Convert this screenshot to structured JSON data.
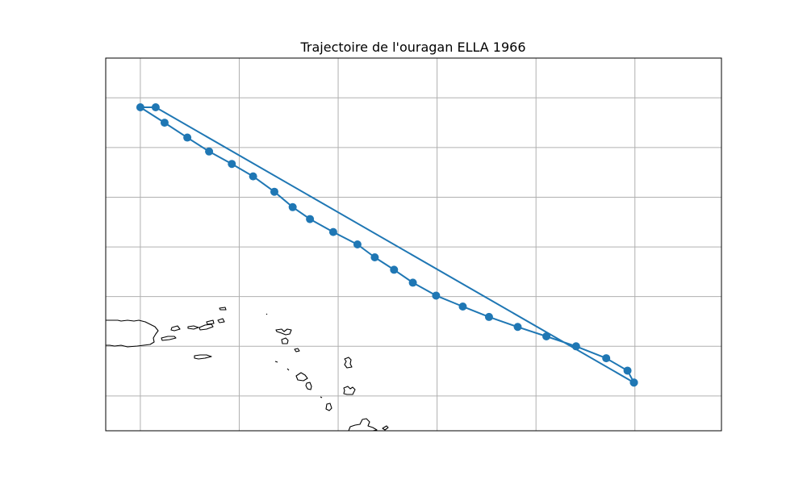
{
  "chart_data": {
    "type": "line",
    "title": "Trajectoire de l'ouragan ELLA 1966",
    "xlabel": "",
    "ylabel": "",
    "projection": "map",
    "grid": true,
    "xlim": [
      -67.35,
      -54.9
    ],
    "ylim": [
      16.2,
      23.7
    ],
    "gridlines_lon": [
      -66.65,
      -64.65,
      -62.65,
      -60.65,
      -58.65,
      -56.65
    ],
    "gridlines_lat": [
      16.9,
      17.9,
      18.9,
      19.9,
      20.9,
      21.9,
      22.9
    ],
    "series": [
      {
        "color": "#1f77b4",
        "marker": "circle",
        "points": [
          {
            "lon": -56.67,
            "lat": 17.17
          },
          {
            "lon": -66.34,
            "lat": 22.71
          },
          {
            "lon": -66.65,
            "lat": 22.71
          },
          {
            "lon": -66.16,
            "lat": 22.4
          },
          {
            "lon": -65.7,
            "lat": 22.1
          },
          {
            "lon": -65.26,
            "lat": 21.82
          },
          {
            "lon": -64.8,
            "lat": 21.57
          },
          {
            "lon": -64.37,
            "lat": 21.32
          },
          {
            "lon": -63.94,
            "lat": 21.01
          },
          {
            "lon": -63.57,
            "lat": 20.7
          },
          {
            "lon": -63.22,
            "lat": 20.46
          },
          {
            "lon": -62.75,
            "lat": 20.2
          },
          {
            "lon": -62.26,
            "lat": 19.95
          },
          {
            "lon": -61.91,
            "lat": 19.69
          },
          {
            "lon": -61.52,
            "lat": 19.44
          },
          {
            "lon": -61.14,
            "lat": 19.18
          },
          {
            "lon": -60.67,
            "lat": 18.92
          },
          {
            "lon": -60.13,
            "lat": 18.7
          },
          {
            "lon": -59.6,
            "lat": 18.49
          },
          {
            "lon": -59.02,
            "lat": 18.29
          },
          {
            "lon": -58.44,
            "lat": 18.1
          },
          {
            "lon": -57.84,
            "lat": 17.9
          },
          {
            "lon": -57.23,
            "lat": 17.66
          },
          {
            "lon": -56.8,
            "lat": 17.41
          },
          {
            "lon": -56.67,
            "lat": 17.17
          }
        ]
      }
    ]
  }
}
